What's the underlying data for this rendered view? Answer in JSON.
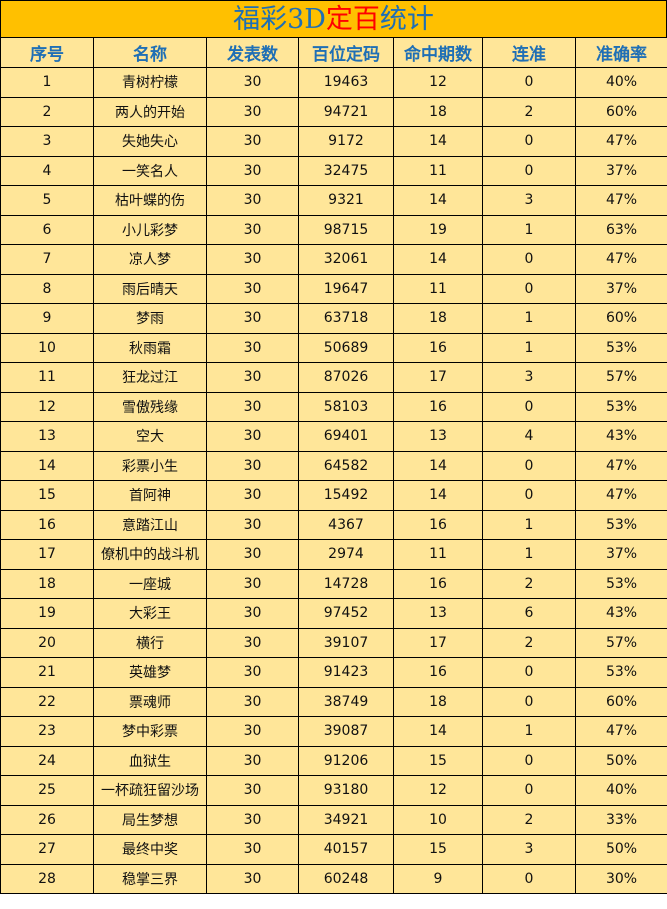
{
  "title": {
    "part1": "福彩3D",
    "highlight": "定百",
    "part2": "统计",
    "colors": {
      "main": "#1F6FB5",
      "highlight": "#FF0000",
      "band": "#FFC000",
      "table_bg": "#FFE699"
    }
  },
  "headers": [
    "序号",
    "名称",
    "发表数",
    "百位定码",
    "命中期数",
    "连准",
    "准确率"
  ],
  "rows": [
    [
      "1",
      "青树柠檬",
      "30",
      "19463",
      "12",
      "0",
      "40%"
    ],
    [
      "2",
      "两人的开始",
      "30",
      "94721",
      "18",
      "2",
      "60%"
    ],
    [
      "3",
      "失她失心",
      "30",
      "9172",
      "14",
      "0",
      "47%"
    ],
    [
      "4",
      "一笑名人",
      "30",
      "32475",
      "11",
      "0",
      "37%"
    ],
    [
      "5",
      "枯叶蝶的伤",
      "30",
      "9321",
      "14",
      "3",
      "47%"
    ],
    [
      "6",
      "小儿彩梦",
      "30",
      "98715",
      "19",
      "1",
      "63%"
    ],
    [
      "7",
      "凉人梦",
      "30",
      "32061",
      "14",
      "0",
      "47%"
    ],
    [
      "8",
      "雨后晴天",
      "30",
      "19647",
      "11",
      "0",
      "37%"
    ],
    [
      "9",
      "梦雨",
      "30",
      "63718",
      "18",
      "1",
      "60%"
    ],
    [
      "10",
      "秋雨霜",
      "30",
      "50689",
      "16",
      "1",
      "53%"
    ],
    [
      "11",
      "狂龙过江",
      "30",
      "87026",
      "17",
      "3",
      "57%"
    ],
    [
      "12",
      "雪傲残缘",
      "30",
      "58103",
      "16",
      "0",
      "53%"
    ],
    [
      "13",
      "空大",
      "30",
      "69401",
      "13",
      "4",
      "43%"
    ],
    [
      "14",
      "彩票小生",
      "30",
      "64582",
      "14",
      "0",
      "47%"
    ],
    [
      "15",
      "首阿神",
      "30",
      "15492",
      "14",
      "0",
      "47%"
    ],
    [
      "16",
      "意踏江山",
      "30",
      "4367",
      "16",
      "1",
      "53%"
    ],
    [
      "17",
      "僚机中的战斗机",
      "30",
      "2974",
      "11",
      "1",
      "37%"
    ],
    [
      "18",
      "一座城",
      "30",
      "14728",
      "16",
      "2",
      "53%"
    ],
    [
      "19",
      "大彩王",
      "30",
      "97452",
      "13",
      "6",
      "43%"
    ],
    [
      "20",
      "横行",
      "30",
      "39107",
      "17",
      "2",
      "57%"
    ],
    [
      "21",
      "英雄梦",
      "30",
      "91423",
      "16",
      "0",
      "53%"
    ],
    [
      "22",
      "票魂师",
      "30",
      "38749",
      "18",
      "0",
      "60%"
    ],
    [
      "23",
      "梦中彩票",
      "30",
      "39087",
      "14",
      "1",
      "47%"
    ],
    [
      "24",
      "血狱生",
      "30",
      "91206",
      "15",
      "0",
      "50%"
    ],
    [
      "25",
      "一杯疏狂留沙场",
      "30",
      "93180",
      "12",
      "0",
      "40%"
    ],
    [
      "26",
      "局生梦想",
      "30",
      "34921",
      "10",
      "2",
      "33%"
    ],
    [
      "27",
      "最终中奖",
      "30",
      "40157",
      "15",
      "3",
      "50%"
    ],
    [
      "28",
      "稳掌三界",
      "30",
      "60248",
      "9",
      "0",
      "30%"
    ]
  ]
}
